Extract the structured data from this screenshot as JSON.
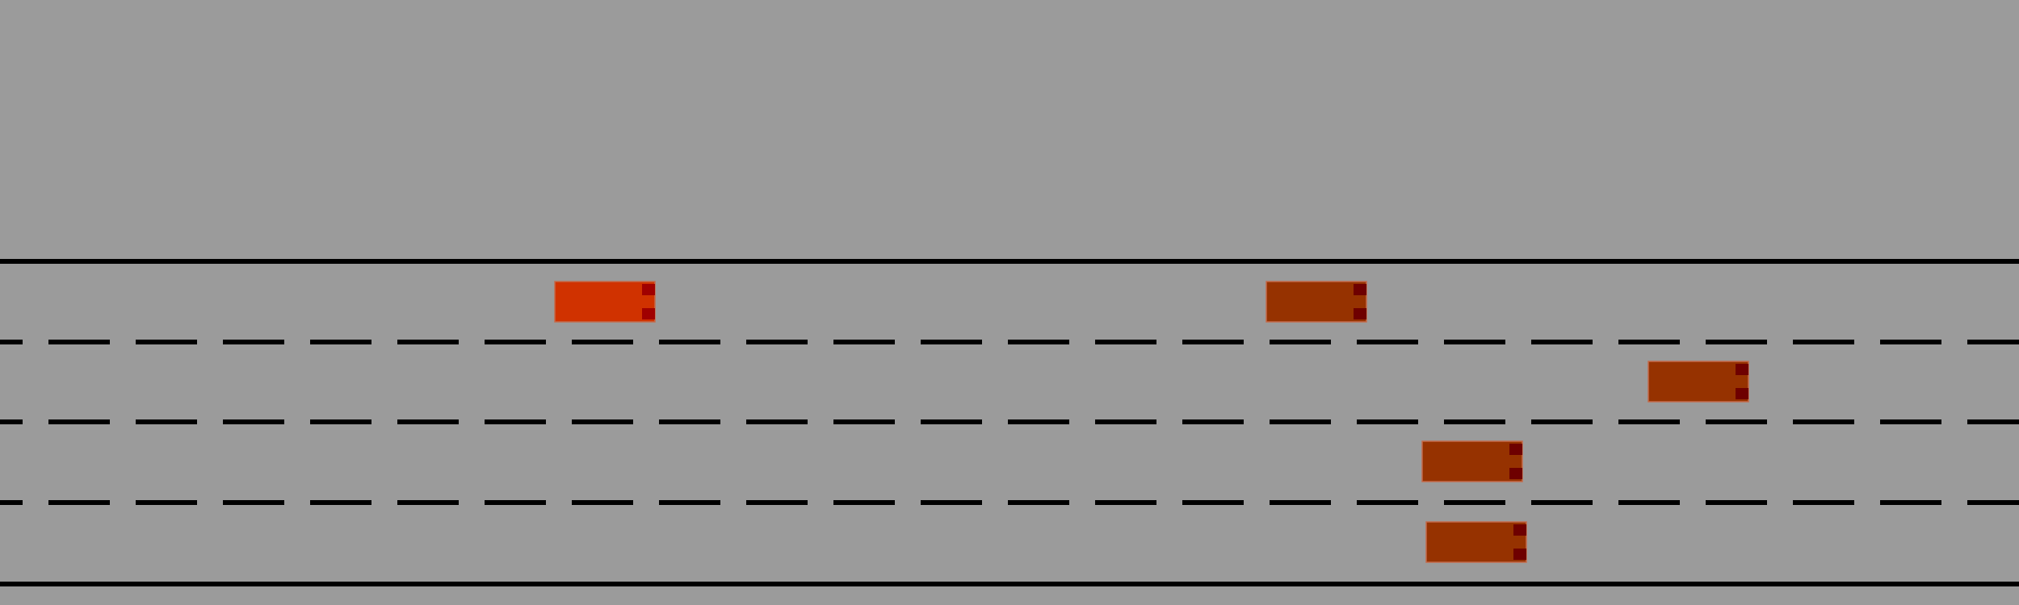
{
  "scene": {
    "background_color": "#9b9b9b",
    "line_color": "#000000",
    "lane_count": 4,
    "lane_dividers": [
      "solid",
      "dashed",
      "dashed",
      "dashed",
      "solid"
    ]
  },
  "vehicles": [
    {
      "role": "ego",
      "lane": 0,
      "body_color": "#d03200",
      "light_color": "#a00000"
    },
    {
      "role": "other",
      "lane": 0,
      "body_color": "#963200",
      "light_color": "#6e0000"
    },
    {
      "role": "other",
      "lane": 1,
      "body_color": "#963200",
      "light_color": "#6e0000"
    },
    {
      "role": "other",
      "lane": 2,
      "body_color": "#963200",
      "light_color": "#6e0000"
    },
    {
      "role": "other",
      "lane": 3,
      "body_color": "#963200",
      "light_color": "#6e0000"
    }
  ]
}
